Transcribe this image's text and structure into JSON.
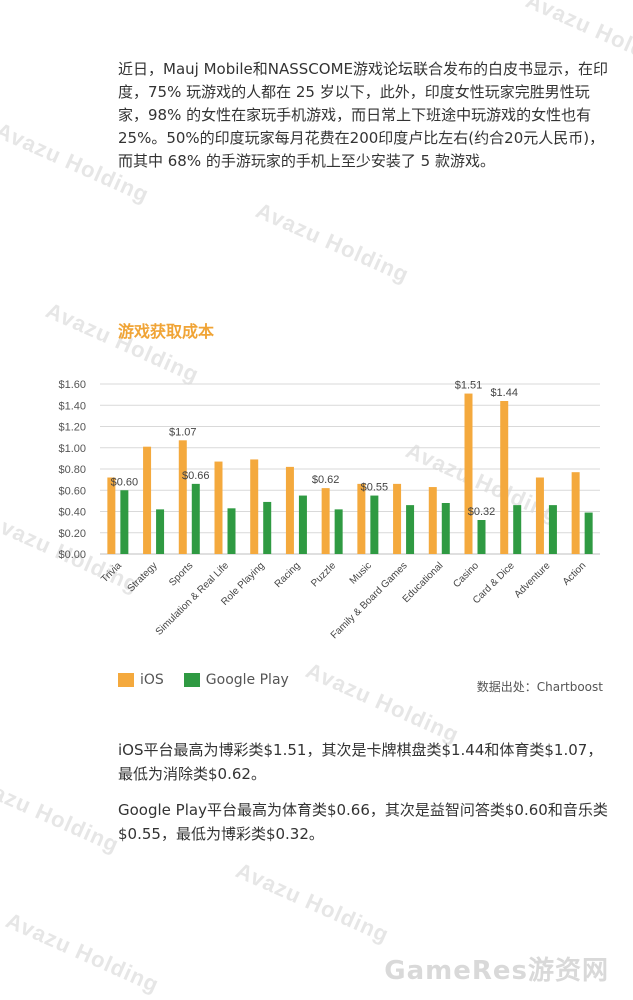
{
  "watermark": "Avazu Holding",
  "intro_text": "近日，Mauj  Mobile和NASSCOME游戏论坛联合发布的白皮书显示，在印度，75% 玩游戏的人都在 25 岁以下，此外，印度女性玩家完胜男性玩家，98%  的女性在家玩手机游戏，而日常上下班途中玩游戏的女性也有25%。50%的印度玩家每月花费在200印度卢比左右(约合20元人民币)，而其中 68% 的手游玩家的手机上至少安装了 5 款游戏。",
  "chart_title": "游戏获取成本",
  "source_text": "数据出处：Chartboost",
  "colors": {
    "ios": "#f4a93d",
    "google_play": "#2f9a42"
  },
  "chart_data": {
    "type": "bar",
    "categories": [
      "Trivia",
      "Strategy",
      "Sports",
      "Simulation & Real Life",
      "Role Playing",
      "Racing",
      "Puzzle",
      "Music",
      "Family & Board Games",
      "Educational",
      "Casino",
      "Card & Dice",
      "Adventure",
      "Action"
    ],
    "series": [
      {
        "name": "iOS",
        "values": [
          0.72,
          1.01,
          1.07,
          0.87,
          0.89,
          0.82,
          0.62,
          0.66,
          0.66,
          0.63,
          1.51,
          1.44,
          0.72,
          0.77
        ]
      },
      {
        "name": "Google Play",
        "values": [
          0.6,
          0.42,
          0.66,
          0.43,
          0.49,
          0.55,
          0.42,
          0.55,
          0.46,
          0.48,
          0.32,
          0.46,
          0.46,
          0.39
        ]
      }
    ],
    "data_labels": [
      {
        "series": 1,
        "index": 0,
        "text": "$0.60"
      },
      {
        "series": 0,
        "index": 2,
        "text": "$1.07"
      },
      {
        "series": 1,
        "index": 2,
        "text": "$0.66"
      },
      {
        "series": 0,
        "index": 6,
        "text": "$0.62"
      },
      {
        "series": 1,
        "index": 7,
        "text": "$0.55"
      },
      {
        "series": 0,
        "index": 10,
        "text": "$1.51"
      },
      {
        "series": 1,
        "index": 10,
        "text": "$0.32"
      },
      {
        "series": 0,
        "index": 11,
        "text": "$1.44"
      }
    ],
    "y_ticks": [
      "$0.00",
      "$0.20",
      "$0.40",
      "$0.60",
      "$0.80",
      "$1.00",
      "$1.20",
      "$1.40",
      "$1.60"
    ],
    "ylim": [
      0,
      1.6
    ],
    "grid": true,
    "legend_placement": "bottom-left"
  },
  "summary": {
    "ios_text": "iOS平台最高为博彩类$1.51，其次是卡牌棋盘类$1.44和体育类$1.07，最低为消除类$0.62。",
    "gp_text": "Google  Play平台最高为体育类$0.66，其次是益智问答类$0.60和音乐类$0.55，最低为博彩类$0.32。"
  },
  "footer_brand": "GameRes游资网"
}
